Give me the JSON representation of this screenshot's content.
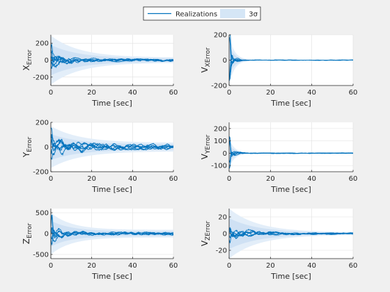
{
  "legend": {
    "items": [
      {
        "label": "Realizations",
        "type": "line",
        "color": "#0072BD"
      },
      {
        "label": "3σ",
        "type": "band",
        "color": "#d5e6f6"
      }
    ]
  },
  "colors": {
    "realization": "#0072BD",
    "sigma_inner": "#cfe1f4",
    "sigma_outer": "#e3eef9",
    "axes": "#262626",
    "grid": "#dfdfdf",
    "figure_bg": "#f0f0f0"
  },
  "chart_data": [
    {
      "type": "line",
      "ylabel_base": "X",
      "ylabel_sub": "Error",
      "xlabel": "Time [sec]",
      "xlim": [
        0,
        60
      ],
      "ylim": [
        -300,
        300
      ],
      "xticks": [
        0,
        20,
        40,
        60
      ],
      "yticks": [
        -200,
        0,
        200
      ],
      "grid": true,
      "band_3sigma": {
        "initial": 290,
        "final": 30,
        "decay": 14
      },
      "series_shape": {
        "count": 6,
        "amplitude": 160,
        "tail_amplitude": 20,
        "decay": 6,
        "spike_time": 0.3,
        "seed": 11
      }
    },
    {
      "type": "line",
      "ylabel_base": "V",
      "ylabel_sub": "XError",
      "xlabel": "Time [sec]",
      "xlim": [
        0,
        60
      ],
      "ylim": [
        -200,
        200
      ],
      "xticks": [
        0,
        20,
        40,
        60
      ],
      "yticks": [
        -200,
        0,
        200
      ],
      "grid": true,
      "band_3sigma": {
        "initial": 200,
        "final": 3,
        "decay": 2.5
      },
      "series_shape": {
        "count": 6,
        "amplitude": 180,
        "tail_amplitude": 2,
        "decay": 1.6,
        "spike_time": 0.3,
        "seed": 23
      }
    },
    {
      "type": "line",
      "ylabel_base": "Y",
      "ylabel_sub": "Error",
      "xlabel": "Time [sec]",
      "xlim": [
        0,
        60
      ],
      "ylim": [
        -200,
        200
      ],
      "xticks": [
        0,
        20,
        40,
        60
      ],
      "yticks": [
        -200,
        0,
        200
      ],
      "grid": true,
      "band_3sigma": {
        "initial": 170,
        "final": 35,
        "decay": 14
      },
      "series_shape": {
        "count": 6,
        "amplitude": 90,
        "tail_amplitude": 25,
        "decay": 12,
        "spike_time": 0.3,
        "seed": 37
      }
    },
    {
      "type": "line",
      "ylabel_base": "V",
      "ylabel_sub": "YError",
      "xlabel": "Time [sec]",
      "xlim": [
        0,
        60
      ],
      "ylim": [
        -150,
        250
      ],
      "xticks": [
        0,
        20,
        40,
        60
      ],
      "yticks": [
        -100,
        0,
        100,
        200
      ],
      "grid": true,
      "band_3sigma": {
        "initial": 120,
        "final": 3,
        "decay": 2.5
      },
      "series_shape": {
        "count": 6,
        "amplitude": 60,
        "tail_amplitude": 3,
        "decay": 2.5,
        "spike_time": 0.3,
        "spike": 240,
        "seed": 41
      }
    },
    {
      "type": "line",
      "ylabel_base": "Z",
      "ylabel_sub": "Error",
      "xlabel": "Time [sec]",
      "xlim": [
        0,
        60
      ],
      "ylim": [
        -600,
        600
      ],
      "xticks": [
        0,
        20,
        40,
        60
      ],
      "yticks": [
        -500,
        0,
        500
      ],
      "grid": true,
      "band_3sigma": {
        "initial": 500,
        "final": 90,
        "decay": 10
      },
      "series_shape": {
        "count": 6,
        "amplitude": 220,
        "tail_amplitude": 40,
        "decay": 5,
        "spike_time": 0.5,
        "spike": 430,
        "seed": 53
      }
    },
    {
      "type": "line",
      "ylabel_base": "V",
      "ylabel_sub": "ZError",
      "xlabel": "Time [sec]",
      "xlim": [
        0,
        60
      ],
      "ylim": [
        -30,
        30
      ],
      "xticks": [
        0,
        20,
        40,
        60
      ],
      "yticks": [
        -20,
        0,
        20
      ],
      "grid": true,
      "band_3sigma": {
        "initial": 30,
        "final": 1.5,
        "decay": 14
      },
      "series_shape": {
        "count": 6,
        "amplitude": 8,
        "tail_amplitude": 1,
        "decay": 12,
        "spike_time": 0.4,
        "seed": 67
      }
    }
  ]
}
